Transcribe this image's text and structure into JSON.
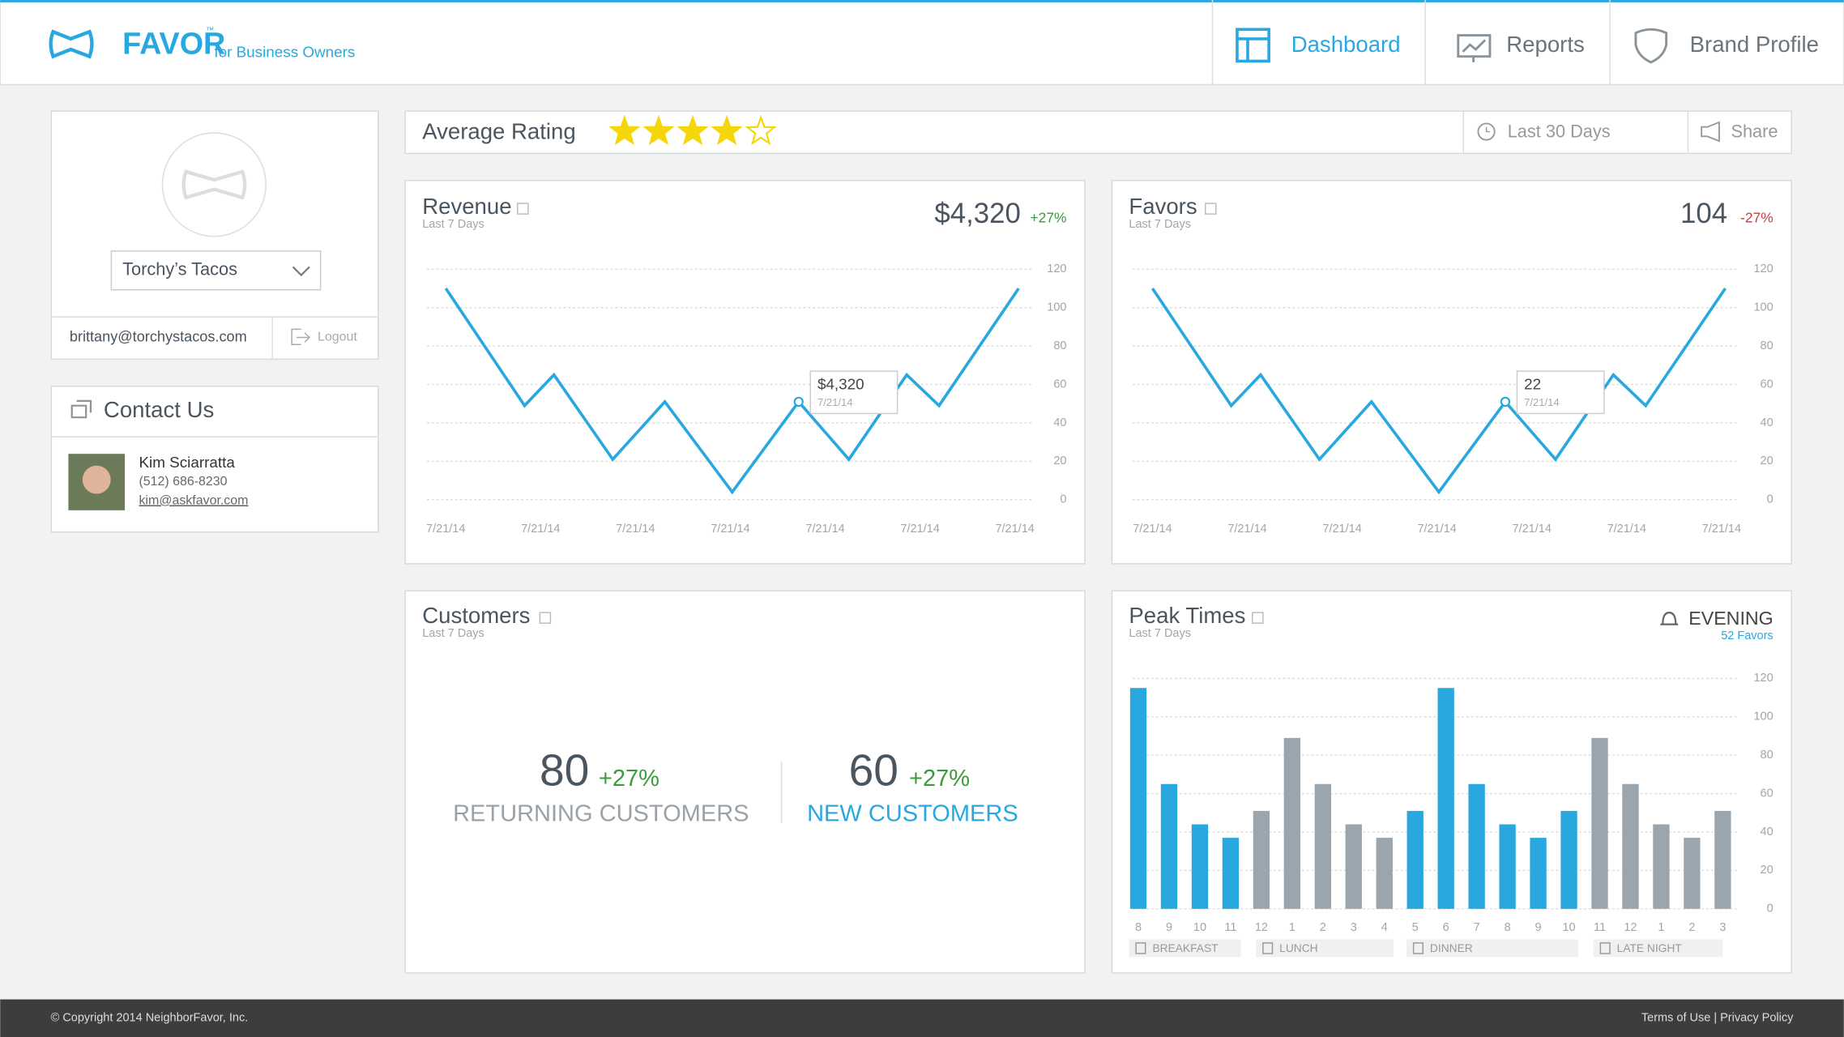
{
  "header": {
    "logo": "FAVOR",
    "logo_mark": "™",
    "tagline": "for Business Owners",
    "nav": [
      "Dashboard",
      "Reports",
      "Brand Profile"
    ]
  },
  "profile": {
    "business": "Torchy’s Tacos",
    "email": "brittany@torchystacos.com",
    "logout": "Logout"
  },
  "contact": {
    "title": "Contact Us",
    "name": "Kim Sciarratta",
    "phone": "(512) 686-8230",
    "email": "kim@askfavor.com"
  },
  "rating": {
    "label": "Average Rating",
    "value": 4,
    "max": 5,
    "period": "Last 30 Days",
    "share": "Share"
  },
  "customers": {
    "title": "Customers",
    "subtitle": "Last 7 Days",
    "returning": 80,
    "returning_change": "+27%",
    "returning_label": "RETURNING CUSTOMERS",
    "new": 60,
    "new_change": "+27%",
    "new_label": "NEW CUSTOMERS"
  },
  "chart_data": [
    {
      "type": "line",
      "title": "Revenue",
      "subtitle": "Last 7 Days",
      "total": "$4,320",
      "change": "+27%",
      "color": "#29a8e0",
      "grid": true,
      "x": [
        0,
        0.83,
        1.14,
        1.76,
        2.31,
        3.02,
        3.72,
        4.25,
        4.86,
        5.2,
        6.04
      ],
      "values": [
        110,
        49,
        65,
        21,
        51,
        4,
        51,
        21,
        65,
        49,
        110
      ],
      "xlim": [
        0,
        6
      ],
      "xticks": [
        {
          "value": 0,
          "label": "7/21/14"
        },
        {
          "value": 1,
          "label": "7/21/14"
        },
        {
          "value": 2,
          "label": "7/21/14"
        },
        {
          "value": 3,
          "label": "7/21/14"
        },
        {
          "value": 4,
          "label": "7/21/14"
        },
        {
          "value": 5,
          "label": "7/21/14"
        },
        {
          "value": 6,
          "label": "7/21/14"
        }
      ],
      "ylim": [
        0,
        120
      ],
      "yticks": [
        0,
        20,
        40,
        60,
        80,
        100,
        120
      ],
      "tooltip": {
        "label": "$4,320",
        "date": "7/21/14"
      }
    },
    {
      "type": "line",
      "title": "Favors",
      "subtitle": "Last 7 Days",
      "total": 104,
      "change": "-27%",
      "color": "#29a8e0",
      "grid": true,
      "x": [
        0,
        0.83,
        1.14,
        1.76,
        2.31,
        3.02,
        3.72,
        4.25,
        4.86,
        5.2,
        6.04
      ],
      "values": [
        110,
        49,
        65,
        21,
        51,
        4,
        51,
        21,
        65,
        49,
        110
      ],
      "xlim": [
        0,
        6
      ],
      "xticks": [
        {
          "value": 0,
          "label": "7/21/14"
        },
        {
          "value": 1,
          "label": "7/21/14"
        },
        {
          "value": 2,
          "label": "7/21/14"
        },
        {
          "value": 3,
          "label": "7/21/14"
        },
        {
          "value": 4,
          "label": "7/21/14"
        },
        {
          "value": 5,
          "label": "7/21/14"
        },
        {
          "value": 6,
          "label": "7/21/14"
        }
      ],
      "ylim": [
        0,
        120
      ],
      "yticks": [
        0,
        20,
        40,
        60,
        80,
        100,
        120
      ],
      "tooltip": {
        "label": "22",
        "date": "7/21/14"
      }
    },
    {
      "type": "bar",
      "title": "Peak Times",
      "subtitle": "Last 7 Days",
      "highlight": "EVENING",
      "highlight_detail": "52 Favors",
      "grid": true,
      "categories": [
        "8",
        "9",
        "10",
        "11",
        "12",
        "1",
        "2",
        "3",
        "4",
        "5",
        "6",
        "7",
        "8",
        "9",
        "10",
        "11",
        "12",
        "1",
        "2",
        "3"
      ],
      "values": [
        115,
        65,
        44,
        37,
        51,
        89,
        65,
        44,
        37,
        51,
        115,
        65,
        44,
        37,
        51,
        89,
        65,
        44,
        37,
        51
      ],
      "colors": [
        "#29a8e0",
        "#29a8e0",
        "#29a8e0",
        "#29a8e0",
        "#9aa5ad",
        "#9aa5ad",
        "#9aa5ad",
        "#9aa5ad",
        "#9aa5ad",
        "#29a8e0",
        "#29a8e0",
        "#29a8e0",
        "#29a8e0",
        "#29a8e0",
        "#29a8e0",
        "#9aa5ad",
        "#9aa5ad",
        "#9aa5ad",
        "#9aa5ad",
        "#9aa5ad"
      ],
      "ylim": [
        0,
        120
      ],
      "yticks": [
        0,
        20,
        40,
        60,
        80,
        100,
        120
      ],
      "groups": [
        "BREAKFAST",
        "LUNCH",
        "DINNER",
        "LATE NIGHT"
      ]
    }
  ],
  "footer": {
    "copyright": "© Copyright 2014 NeighborFavor, Inc.",
    "links": "Terms of Use | Privacy Policy"
  }
}
